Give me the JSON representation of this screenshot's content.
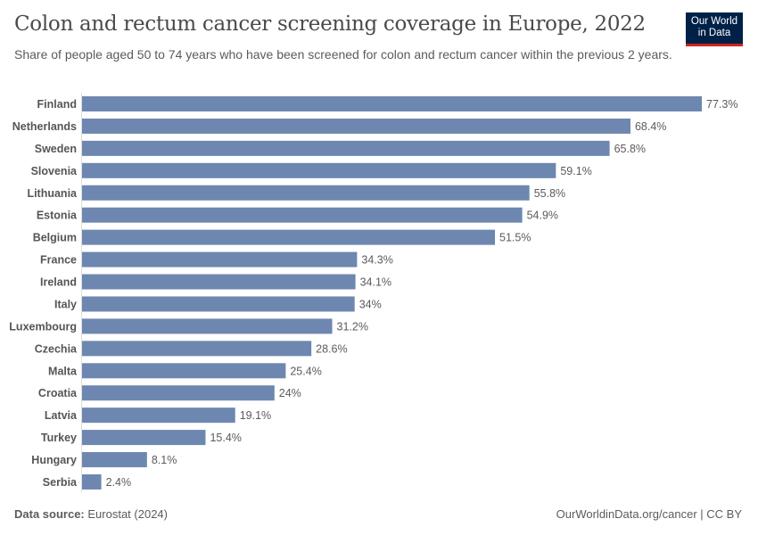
{
  "chart_data": {
    "type": "bar",
    "orientation": "horizontal",
    "title": "Colon and rectum cancer screening coverage in Europe, 2022",
    "subtitle": "Share of people aged 50 to 74 years who have been screened for colon and rectum cancer within the previous 2 years.",
    "categories": [
      "Finland",
      "Netherlands",
      "Sweden",
      "Slovenia",
      "Lithuania",
      "Estonia",
      "Belgium",
      "France",
      "Ireland",
      "Italy",
      "Luxembourg",
      "Czechia",
      "Malta",
      "Croatia",
      "Latvia",
      "Turkey",
      "Hungary",
      "Serbia"
    ],
    "values": [
      77.3,
      68.4,
      65.8,
      59.1,
      55.8,
      54.9,
      51.5,
      34.3,
      34.1,
      34,
      31.2,
      28.6,
      25.4,
      24,
      19.1,
      15.4,
      8.1,
      2.4
    ],
    "value_labels": [
      "77.3%",
      "68.4%",
      "65.8%",
      "59.1%",
      "55.8%",
      "54.9%",
      "51.5%",
      "34.3%",
      "34.1%",
      "34%",
      "31.2%",
      "28.6%",
      "25.4%",
      "24%",
      "19.1%",
      "15.4%",
      "8.1%",
      "2.4%"
    ],
    "unit": "%",
    "xlim": [
      0,
      77.3
    ],
    "bar_color": "#6d87b0",
    "grid": false
  },
  "logo": {
    "line1": "Our World",
    "line2": "in Data",
    "bg": "#002147",
    "accent": "#ce261e"
  },
  "footer": {
    "source_label": "Data source:",
    "source": "Eurostat (2024)",
    "url": "OurWorldinData.org/cancer | CC BY"
  }
}
